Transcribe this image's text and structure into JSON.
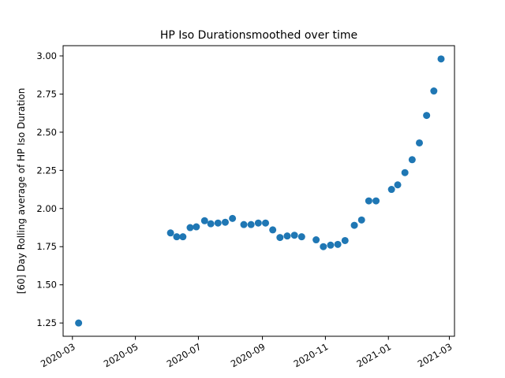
{
  "chart_data": {
    "type": "scatter",
    "title": "HP Iso Durationsmoothed over time",
    "xlabel": "",
    "ylabel": "[60] Day Rolling average of HP Iso Duration",
    "x_type": "date",
    "xlim": [
      "2020-02-21",
      "2021-03-06"
    ],
    "ylim": [
      1.163,
      3.067
    ],
    "x_ticks": [
      "2020-03-01",
      "2020-05-01",
      "2020-07-01",
      "2020-09-01",
      "2020-11-01",
      "2021-01-01",
      "2021-03-01"
    ],
    "x_tick_labels": [
      "2020-03",
      "2020-05",
      "2020-07",
      "2020-09",
      "2020-11",
      "2021-01",
      "2021-03"
    ],
    "y_ticks": [
      1.25,
      1.5,
      1.75,
      2.0,
      2.25,
      2.5,
      2.75,
      3.0
    ],
    "y_tick_labels": [
      "1.25",
      "1.50",
      "1.75",
      "2.00",
      "2.25",
      "2.50",
      "2.75",
      "3.00"
    ],
    "grid": false,
    "color": "#1f77b4",
    "series": [
      {
        "points": [
          {
            "x": "2020-03-07",
            "y": 1.25
          },
          {
            "x": "2020-06-04",
            "y": 1.84
          },
          {
            "x": "2020-06-10",
            "y": 1.815
          },
          {
            "x": "2020-06-16",
            "y": 1.815
          },
          {
            "x": "2020-06-23",
            "y": 1.875
          },
          {
            "x": "2020-06-29",
            "y": 1.88
          },
          {
            "x": "2020-07-07",
            "y": 1.92
          },
          {
            "x": "2020-07-13",
            "y": 1.9
          },
          {
            "x": "2020-07-20",
            "y": 1.905
          },
          {
            "x": "2020-07-27",
            "y": 1.91
          },
          {
            "x": "2020-08-03",
            "y": 1.935
          },
          {
            "x": "2020-08-14",
            "y": 1.895
          },
          {
            "x": "2020-08-21",
            "y": 1.895
          },
          {
            "x": "2020-08-28",
            "y": 1.905
          },
          {
            "x": "2020-09-04",
            "y": 1.905
          },
          {
            "x": "2020-09-11",
            "y": 1.86
          },
          {
            "x": "2020-09-18",
            "y": 1.81
          },
          {
            "x": "2020-09-25",
            "y": 1.82
          },
          {
            "x": "2020-10-02",
            "y": 1.825
          },
          {
            "x": "2020-10-09",
            "y": 1.815
          },
          {
            "x": "2020-10-23",
            "y": 1.795
          },
          {
            "x": "2020-10-30",
            "y": 1.75
          },
          {
            "x": "2020-11-06",
            "y": 1.76
          },
          {
            "x": "2020-11-13",
            "y": 1.765
          },
          {
            "x": "2020-11-20",
            "y": 1.79
          },
          {
            "x": "2020-11-29",
            "y": 1.89
          },
          {
            "x": "2020-12-06",
            "y": 1.925
          },
          {
            "x": "2020-12-13",
            "y": 2.05
          },
          {
            "x": "2020-12-20",
            "y": 2.05
          },
          {
            "x": "2021-01-04",
            "y": 2.125
          },
          {
            "x": "2021-01-10",
            "y": 2.155
          },
          {
            "x": "2021-01-17",
            "y": 2.235
          },
          {
            "x": "2021-01-24",
            "y": 2.32
          },
          {
            "x": "2021-01-31",
            "y": 2.43
          },
          {
            "x": "2021-02-07",
            "y": 2.61
          },
          {
            "x": "2021-02-14",
            "y": 2.77
          },
          {
            "x": "2021-02-21",
            "y": 2.98
          }
        ]
      }
    ]
  }
}
